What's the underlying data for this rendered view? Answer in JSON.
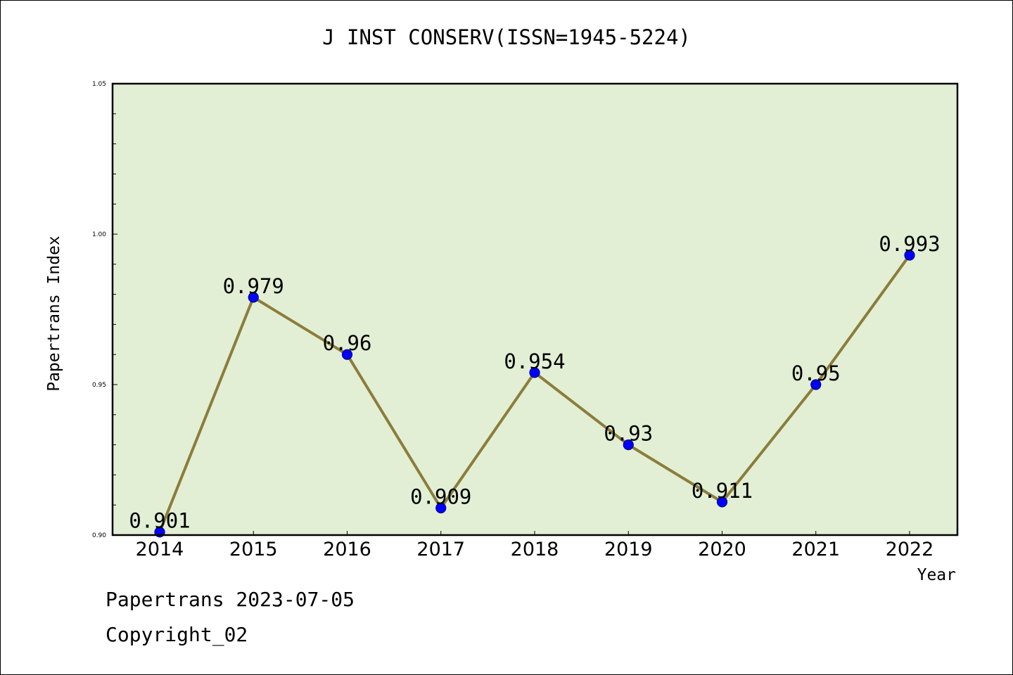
{
  "title": "J INST CONSERV(ISSN=1945-5224)",
  "footer": {
    "line1": "Papertrans 2023-07-05",
    "line2": "Copyright_02"
  },
  "chart_data": {
    "type": "line",
    "title": "J INST CONSERV(ISSN=1945-5224)",
    "xlabel": "Year",
    "ylabel": "Papertrans Index",
    "categories": [
      "2014",
      "2015",
      "2016",
      "2017",
      "2018",
      "2019",
      "2020",
      "2021",
      "2022"
    ],
    "values": [
      0.901,
      0.979,
      0.96,
      0.909,
      0.954,
      0.93,
      0.911,
      0.95,
      0.993
    ],
    "data_labels": [
      "0.901",
      "0.979",
      "0.96",
      "0.909",
      "0.954",
      "0.93",
      "0.911",
      "0.95",
      "0.993"
    ],
    "ylim": [
      0.9,
      1.05
    ],
    "yticks": [
      "0.90",
      "0.95",
      "1.00",
      "1.05"
    ],
    "grid": false,
    "colors": {
      "plot_background": "#e2efd5",
      "line": "#8b7d3a",
      "marker": "#0000ff",
      "marker_edge": "#000080"
    }
  }
}
